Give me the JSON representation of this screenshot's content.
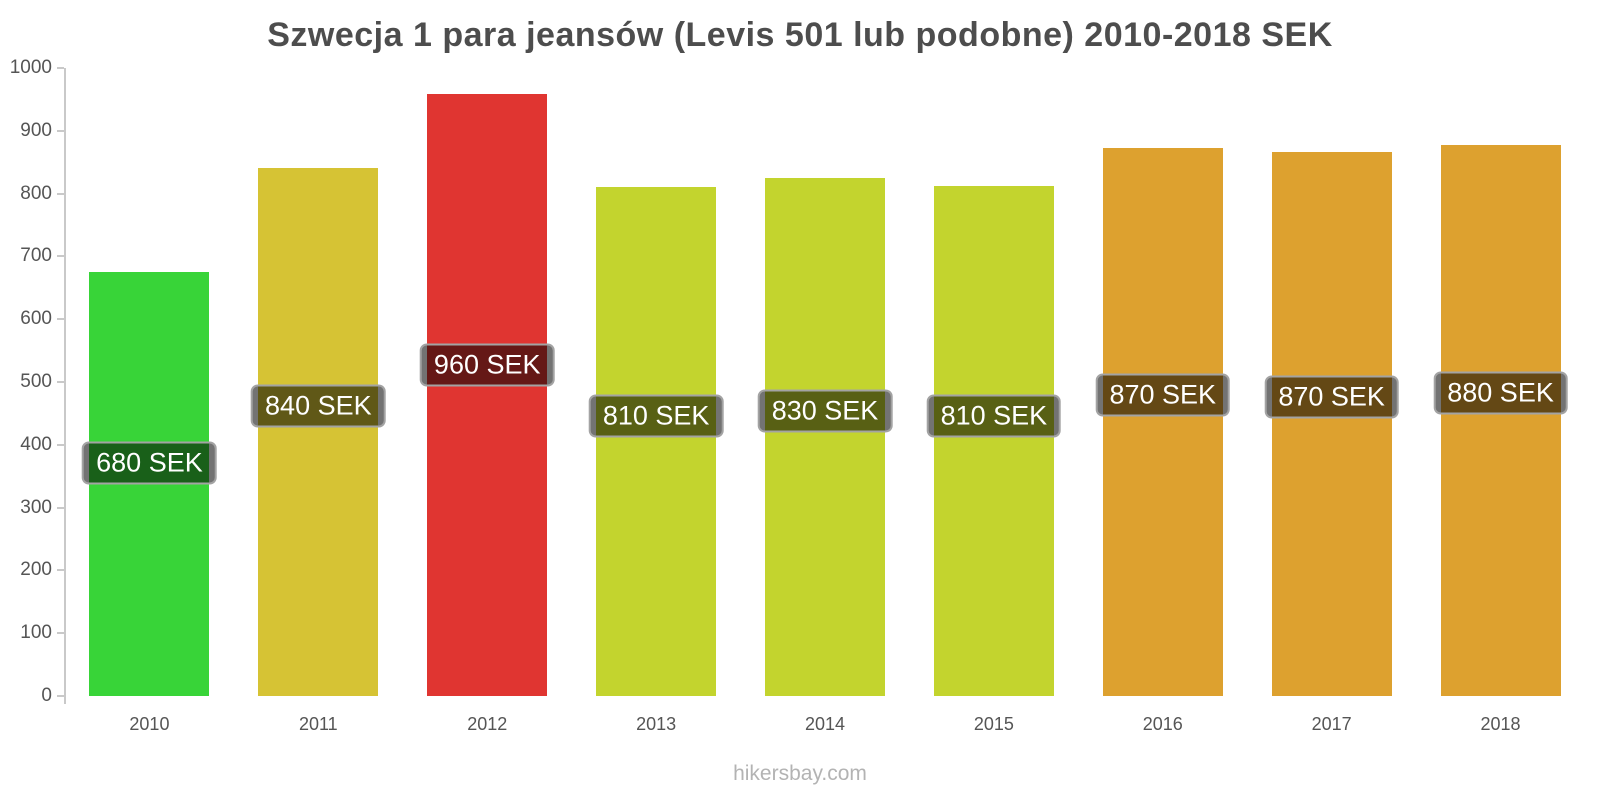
{
  "chart_data": {
    "type": "bar",
    "title": "Szwecja 1 para jeansów (Levis 501 lub podobne) 2010-2018 SEK",
    "categories": [
      "2010",
      "2011",
      "2012",
      "2013",
      "2014",
      "2015",
      "2016",
      "2017",
      "2018"
    ],
    "values": [
      675,
      840,
      958,
      810,
      825,
      812,
      872,
      867,
      877
    ],
    "bar_labels": [
      "680 SEK",
      "840 SEK",
      "960 SEK",
      "810 SEK",
      "830 SEK",
      "810 SEK",
      "870 SEK",
      "870 SEK",
      "880 SEK"
    ],
    "bar_colors": [
      "#38d438",
      "#d6c334",
      "#e03531",
      "#c3d42e",
      "#c3d42e",
      "#c3d42e",
      "#dda12f",
      "#dda12f",
      "#dda12f"
    ],
    "ylim": [
      0,
      1000
    ],
    "yticks": [
      0,
      100,
      200,
      300,
      400,
      500,
      600,
      700,
      800,
      900,
      1000
    ],
    "grid": false,
    "legend": null,
    "xlabel": "",
    "ylabel": ""
  },
  "footer": {
    "text": "hikersbay.com"
  },
  "style": {
    "title_color": "#4d4d4d",
    "axis_color": "#c9c9c9",
    "tick_label_color": "#555555",
    "label_box_bg": "rgba(0,0,0,0.55)",
    "label_box_border": "#a3a3a3",
    "label_text_color": "#ffffff",
    "background": "#ffffff"
  }
}
